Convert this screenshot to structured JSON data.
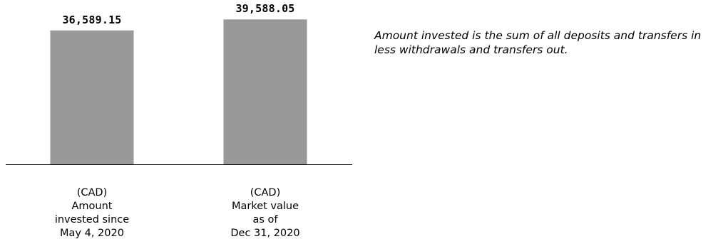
{
  "chart_data": {
    "type": "bar",
    "categories": [
      [
        "(CAD)",
        "Amount",
        "invested since",
        "May 4, 2020"
      ],
      [
        "(CAD)",
        "Market value",
        "as of",
        "Dec 31, 2020"
      ]
    ],
    "values": [
      36589.15,
      39588.05
    ],
    "value_labels": [
      "36,589.15",
      "39,588.05"
    ],
    "ylim": [
      0,
      41000
    ],
    "grid": false,
    "bar_color": "#999999",
    "axis_color": "#000000"
  },
  "note": {
    "lines": [
      "Amount invested is the sum of all deposits and transfers in",
      "less withdrawals and transfers out."
    ]
  }
}
